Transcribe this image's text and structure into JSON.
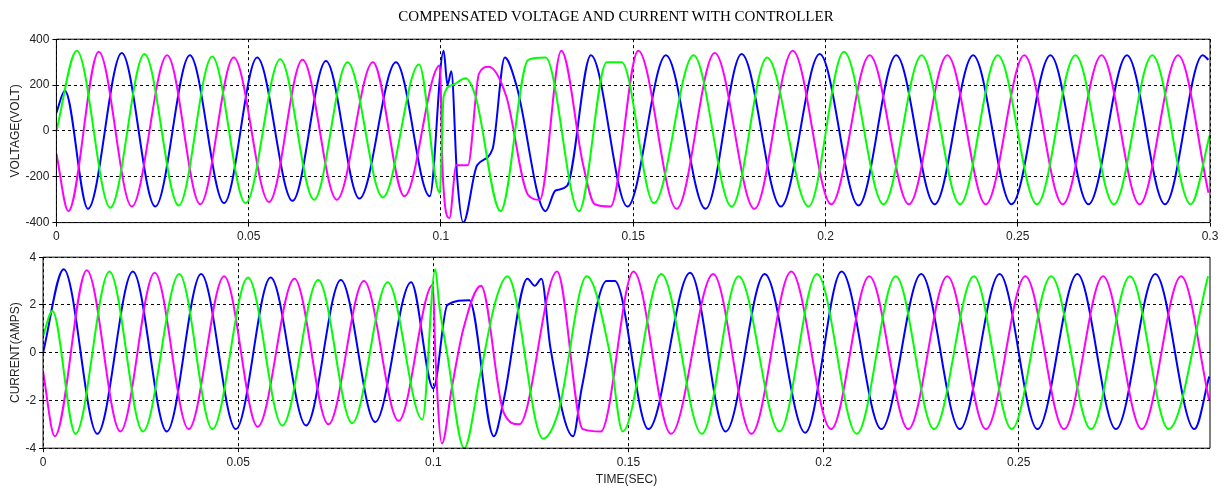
{
  "chart_data": [
    {
      "type": "line",
      "title": "COMPENSATED VOLTAGE AND CURRENT WITH CONTROLLER",
      "ylabel": "VOLTAGE(VOLT)",
      "xlim": [
        0,
        0.3
      ],
      "xticks": [
        0,
        0.05,
        0.1,
        0.15,
        0.2,
        0.25,
        0.3
      ],
      "ylim": [
        -400,
        400
      ],
      "yticks": [
        -400,
        -200,
        0,
        200,
        400
      ],
      "grid": true,
      "legend": false,
      "marker": "none",
      "line_style": "solid",
      "series": [
        {
          "color": "#00ff00",
          "x": [
            0,
            0.0053,
            0.014,
            0.0229,
            0.0318,
            0.0405,
            0.0492,
            0.0582,
            0.067,
            0.0757,
            0.0849,
            0.0943,
            0.0997,
            0.1007,
            0.103,
            0.1064,
            0.109,
            0.1155,
            0.1227,
            0.1272,
            0.1359,
            0.1431,
            0.147,
            0.1554,
            0.1657,
            0.1756,
            0.1848,
            0.1956,
            0.2048,
            0.2151,
            0.225,
            0.235,
            0.2448,
            0.255,
            0.265,
            0.275,
            0.285,
            0.295,
            0.2999
          ],
          "values": [
            0,
            350,
            -335,
            335,
            -325,
            325,
            -315,
            312,
            -300,
            300,
            -290,
            290,
            -270,
            150,
            200,
            230,
            150,
            -350,
            310,
            320,
            -350,
            300,
            300,
            -315,
            330,
            -330,
            320,
            -330,
            345,
            -320,
            330,
            -320,
            330,
            -320,
            330,
            -320,
            330,
            -320,
            -20
          ]
        },
        {
          "color": "#ff00ff",
          "x": [
            0,
            0.0031,
            0.011,
            0.0196,
            0.0288,
            0.0374,
            0.0461,
            0.0553,
            0.064,
            0.0729,
            0.0823,
            0.0905,
            0.0997,
            0.1005,
            0.1022,
            0.104,
            0.107,
            0.1099,
            0.1124,
            0.117,
            0.1227,
            0.1257,
            0.1313,
            0.137,
            0.14,
            0.1441,
            0.1513,
            0.1613,
            0.1712,
            0.1815,
            0.1915,
            0.2015,
            0.2115,
            0.2217,
            0.2317,
            0.2417,
            0.2517,
            0.2617,
            0.2718,
            0.2817,
            0.2917,
            0.2996
          ],
          "values": [
            -100,
            -350,
            345,
            -330,
            330,
            -320,
            320,
            -310,
            310,
            -300,
            300,
            -285,
            285,
            -200,
            -380,
            -150,
            -150,
            250,
            280,
            150,
            -280,
            -300,
            350,
            -150,
            -320,
            -330,
            350,
            -340,
            340,
            -340,
            350,
            -320,
            330,
            -320,
            330,
            -320,
            330,
            -320,
            330,
            -320,
            330,
            -270
          ]
        },
        {
          "color": "#0000ff",
          "x": [
            0,
            0.0022,
            0.0082,
            0.017,
            0.0257,
            0.0347,
            0.0436,
            0.0522,
            0.0614,
            0.0701,
            0.0788,
            0.0883,
            0.0971,
            0.1007,
            0.1017,
            0.1027,
            0.1042,
            0.1058,
            0.1094,
            0.1134,
            0.1166,
            0.1196,
            0.1272,
            0.1298,
            0.1328,
            0.139,
            0.1485,
            0.1585,
            0.1688,
            0.1782,
            0.1884,
            0.1985,
            0.2086,
            0.2184,
            0.2284,
            0.2384,
            0.2484,
            0.2585,
            0.2684,
            0.2784,
            0.2883,
            0.2981,
            0.2996
          ],
          "values": [
            80,
            175,
            -340,
            340,
            -330,
            330,
            -315,
            320,
            -305,
            305,
            -295,
            300,
            -285,
            350,
            200,
            260,
            -200,
            -400,
            -150,
            -80,
            320,
            200,
            -350,
            -260,
            -240,
            330,
            -330,
            330,
            -340,
            335,
            -330,
            335,
            -325,
            330,
            -320,
            330,
            -320,
            330,
            -320,
            330,
            -320,
            330,
            310
          ]
        }
      ]
    },
    {
      "type": "line",
      "xlabel": "TIME(SEC)",
      "ylabel": "CURRENT(AMPS)",
      "xlim": [
        0,
        0.299
      ],
      "xticks": [
        0,
        0.05,
        0.1,
        0.15,
        0.2,
        0.25
      ],
      "ylim": [
        -4,
        4
      ],
      "yticks": [
        -4,
        -2,
        0,
        2,
        4
      ],
      "grid": true,
      "legend": false,
      "marker": "none",
      "line_style": "solid",
      "series": [
        {
          "color": "#00ff00",
          "x": [
            0,
            0.0024,
            0.0083,
            0.017,
            0.0256,
            0.0349,
            0.0434,
            0.0525,
            0.0613,
            0.0705,
            0.0792,
            0.0883,
            0.0972,
            0.1005,
            0.1015,
            0.1035,
            0.1079,
            0.1119,
            0.116,
            0.119,
            0.1281,
            0.132,
            0.1393,
            0.1452,
            0.1485,
            0.1584,
            0.1688,
            0.1782,
            0.1887,
            0.1983,
            0.2085,
            0.2185,
            0.2283,
            0.2385,
            0.2482,
            0.2583,
            0.2685,
            0.2785,
            0.2884,
            0.2985
          ],
          "values": [
            0.7,
            1.75,
            -3.4,
            3.4,
            -3.3,
            3.3,
            -3.2,
            3.15,
            -3.05,
            3.05,
            -2.95,
            2.95,
            -2.8,
            3.5,
            2,
            0,
            -4,
            -1,
            2.2,
            3.2,
            -3.6,
            -2.5,
            3.2,
            0,
            -3.3,
            3.3,
            -3.4,
            3.2,
            -3.3,
            3.3,
            -3.4,
            3.2,
            -3.2,
            3.2,
            -3.2,
            3.2,
            -3.2,
            3.2,
            -3.2,
            3.2
          ]
        },
        {
          "color": "#ff00ff",
          "x": [
            0,
            0.003,
            0.0112,
            0.0198,
            0.0286,
            0.0373,
            0.0464,
            0.055,
            0.0644,
            0.0731,
            0.0822,
            0.0911,
            0.0999,
            0.1005,
            0.1022,
            0.1047,
            0.1077,
            0.1122,
            0.118,
            0.122,
            0.1317,
            0.1383,
            0.1429,
            0.1513,
            0.1609,
            0.1717,
            0.1815,
            0.1917,
            0.2019,
            0.2117,
            0.2217,
            0.2317,
            0.2416,
            0.2517,
            0.2616,
            0.2716,
            0.2815,
            0.2916,
            0.2988
          ],
          "values": [
            -0.8,
            -3.5,
            3.45,
            -3.3,
            3.35,
            -3.2,
            3.2,
            -3.1,
            3.1,
            -3,
            3,
            -2.85,
            2.85,
            0,
            -3.8,
            -1.5,
            1,
            2.8,
            -2.5,
            -3,
            3.4,
            -3.2,
            -3.3,
            3.4,
            -3.4,
            3.3,
            -3.4,
            3.4,
            -3.2,
            3.2,
            -3.2,
            3.2,
            -3.2,
            3.2,
            -3.2,
            3.2,
            -3.2,
            3.2,
            -2
          ]
        },
        {
          "color": "#0000ff",
          "x": [
            0,
            0.0053,
            0.0139,
            0.023,
            0.0317,
            0.0405,
            0.0494,
            0.0583,
            0.0674,
            0.0763,
            0.0851,
            0.0943,
            0.1,
            0.1036,
            0.1092,
            0.1155,
            0.118,
            0.1241,
            0.126,
            0.1277,
            0.13,
            0.1358,
            0.138,
            0.1444,
            0.1465,
            0.1551,
            0.1658,
            0.1749,
            0.1849,
            0.1953,
            0.2046,
            0.2148,
            0.225,
            0.2349,
            0.2451,
            0.2548,
            0.265,
            0.2749,
            0.285,
            0.295,
            0.2988
          ],
          "values": [
            0,
            3.5,
            -3.4,
            3.4,
            -3.3,
            3.3,
            -3.2,
            3.15,
            -3.05,
            3.05,
            -2.9,
            2.95,
            -1.5,
            2,
            2.2,
            -3.5,
            -2,
            3.1,
            2.8,
            3.1,
            0.2,
            -3.5,
            -1.5,
            3,
            3,
            -3.2,
            3.35,
            -3.3,
            3.3,
            -3.35,
            3.4,
            -3.2,
            3.3,
            -3.2,
            3.3,
            -3.2,
            3.3,
            -3.2,
            3.3,
            -3.2,
            -1
          ]
        }
      ]
    }
  ]
}
